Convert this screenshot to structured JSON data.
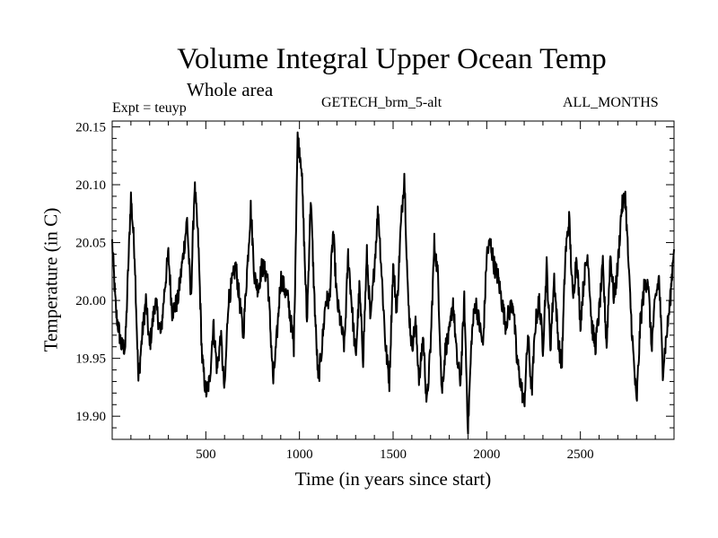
{
  "chart_data": {
    "type": "line",
    "title": "Volume Integral Upper Ocean Temp",
    "subtitle": "Whole area",
    "experiment": "Expt = teuyp",
    "run_name": "GETECH_brm_5-alt",
    "period": "ALL_MONTHS",
    "xlabel": "Time (in years since start)",
    "ylabel": "Temperature (in C)",
    "xlim": [
      0,
      3000
    ],
    "ylim": [
      19.88,
      20.155
    ],
    "xticks": [
      500,
      1000,
      1500,
      2000,
      2500
    ],
    "xtick_labels": [
      "500",
      "1000",
      "1500",
      "2000",
      "2500"
    ],
    "yticks": [
      19.9,
      19.95,
      20.0,
      20.05,
      20.1,
      20.15
    ],
    "ytick_labels": [
      "19.90",
      "19.95",
      "20.00",
      "20.05",
      "20.10",
      "20.15"
    ],
    "series": [
      {
        "name": "Volume integral upper ocean temperature",
        "x": [
          0,
          20,
          50,
          70,
          100,
          120,
          140,
          160,
          180,
          200,
          230,
          260,
          280,
          300,
          320,
          350,
          380,
          400,
          420,
          440,
          460,
          480,
          500,
          520,
          540,
          560,
          580,
          600,
          620,
          660,
          700,
          740,
          760,
          780,
          800,
          830,
          860,
          880,
          900,
          940,
          970,
          990,
          1010,
          1040,
          1060,
          1080,
          1100,
          1120,
          1140,
          1160,
          1180,
          1200,
          1240,
          1260,
          1300,
          1320,
          1340,
          1360,
          1380,
          1420,
          1440,
          1460,
          1480,
          1500,
          1520,
          1540,
          1560,
          1580,
          1600,
          1620,
          1640,
          1660,
          1680,
          1700,
          1720,
          1740,
          1760,
          1780,
          1800,
          1820,
          1840,
          1860,
          1880,
          1900,
          1920,
          1940,
          1960,
          1980,
          2000,
          2020,
          2040,
          2060,
          2080,
          2100,
          2120,
          2140,
          2160,
          2180,
          2200,
          2220,
          2240,
          2260,
          2280,
          2300,
          2320,
          2340,
          2360,
          2380,
          2400,
          2420,
          2440,
          2460,
          2480,
          2500,
          2520,
          2540,
          2560,
          2580,
          2600,
          2620,
          2640,
          2660,
          2680,
          2700,
          2720,
          2740,
          2760,
          2780,
          2800,
          2820,
          2840,
          2860,
          2880,
          2900,
          2920,
          2940,
          2960,
          2980,
          3000
        ],
        "values": [
          20.05,
          19.99,
          19.96,
          19.96,
          20.09,
          20.04,
          19.93,
          19.97,
          20.0,
          19.96,
          20.0,
          19.97,
          20.01,
          20.04,
          19.99,
          20.0,
          20.04,
          20.07,
          20.0,
          20.1,
          20.05,
          19.95,
          19.92,
          19.93,
          19.98,
          19.94,
          19.97,
          19.92,
          20.0,
          20.03,
          19.97,
          20.08,
          20.02,
          20.01,
          20.03,
          20.02,
          19.93,
          19.97,
          20.02,
          20.0,
          19.96,
          20.14,
          20.12,
          19.98,
          20.09,
          20.0,
          19.93,
          19.96,
          20.0,
          20.0,
          20.06,
          20.0,
          19.96,
          20.04,
          19.95,
          20.01,
          19.95,
          20.04,
          19.98,
          20.08,
          20.02,
          19.96,
          19.93,
          20.03,
          19.99,
          20.06,
          20.11,
          20.0,
          19.96,
          19.98,
          19.93,
          19.97,
          19.91,
          19.96,
          20.05,
          20.02,
          19.92,
          19.96,
          19.97,
          20.0,
          19.95,
          19.93,
          20.0,
          19.89,
          19.97,
          20.0,
          19.98,
          19.96,
          20.04,
          20.05,
          20.03,
          20.02,
          20.0,
          19.98,
          19.99,
          20.0,
          19.95,
          19.93,
          19.91,
          19.97,
          19.92,
          19.98,
          20.0,
          19.96,
          20.03,
          19.96,
          20.02,
          19.97,
          19.94,
          20.04,
          20.07,
          20.0,
          20.04,
          19.98,
          20.02,
          20.04,
          19.98,
          19.96,
          19.99,
          20.03,
          19.96,
          20.04,
          20.0,
          20.03,
          20.08,
          20.09,
          20.02,
          19.96,
          19.91,
          19.98,
          20.01,
          20.02,
          19.96,
          20.0,
          20.02,
          19.94,
          19.97,
          20.0,
          20.05
        ]
      }
    ]
  }
}
